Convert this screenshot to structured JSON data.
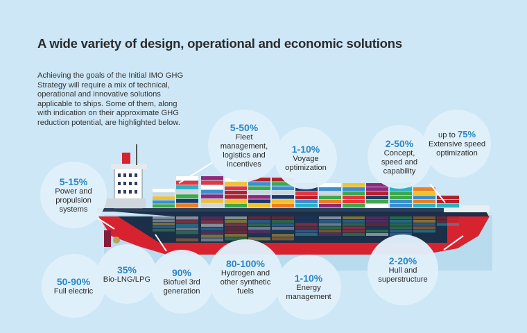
{
  "title": "A wide variety of design, operational and economic solutions",
  "intro": "Achieving the goals of the Initial IMO GHG Strategy will require a mix of technical, operational and innovative solutions applicable to ships. Some of them, along with indication on their approximate GHG reduction potential, are highlighted below.",
  "colors": {
    "accent": "#2a86c5",
    "background": "#cde7f6",
    "hull_red": "#d7232f",
    "hull_dark": "#1c2f48"
  },
  "solutions": [
    {
      "pct": "5-15%",
      "label": "Power and propulsion systems"
    },
    {
      "pct": "5-50%",
      "label": "Fleet management, logistics and incentives"
    },
    {
      "pct": "1-10%",
      "label": "Voyage optimization"
    },
    {
      "pct": "2-50%",
      "label": "Concept, speed and capability"
    },
    {
      "prefix": "up to",
      "pct": "75%",
      "label": "Extensive speed optimization"
    },
    {
      "pct": "50-90%",
      "label": "Full electric"
    },
    {
      "pct": "35%",
      "label": "Bio-LNG/LPG"
    },
    {
      "pct": "90%",
      "label": "Biofuel 3rd generation"
    },
    {
      "pct": "80-100%",
      "label": "Hydrogen and other synthetic fuels"
    },
    {
      "pct": "1-10%",
      "label": "Energy management"
    },
    {
      "pct": "2-20%",
      "label": "Hull and superstructure"
    }
  ]
}
